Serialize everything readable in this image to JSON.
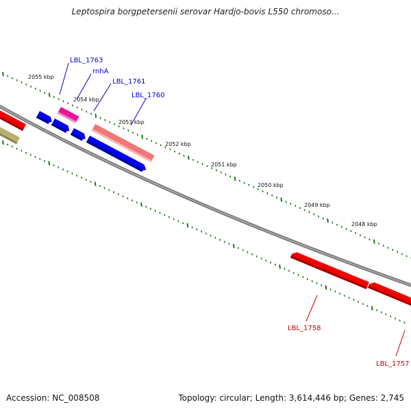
{
  "title": "Leptospira borgpetersenii serovar Hardjo-bovis L550 chromoso...",
  "footer": {
    "accession": "Accession: NC_008508",
    "summary": "Topology: circular; Length: 3,614,446 bp; Genes: 2,745"
  },
  "colors": {
    "backbone": "#808080",
    "tick": "#1a7a1a",
    "gene_red": "#ee0000",
    "gene_blue": "#0000ee",
    "gene_pink": "#ee1199",
    "gene_salmon": "#ee7777",
    "gene_olive": "#b8b070",
    "label_blue": "#0000cc",
    "label_red": "#cc0000"
  },
  "ticks": {
    "labels": [
      "2055 kbp",
      "2054 kbp",
      "2053 kbp",
      "2052 kbp",
      "2051 kbp",
      "2050 kbp",
      "2049 kbp",
      "2048 kbp"
    ]
  },
  "genes": {
    "forward_labels": [
      "LBL_1763",
      "rnhA",
      "LBL_1761",
      "LBL_1760"
    ],
    "reverse_labels": [
      "LBL_1758",
      "LBL_1757"
    ]
  }
}
